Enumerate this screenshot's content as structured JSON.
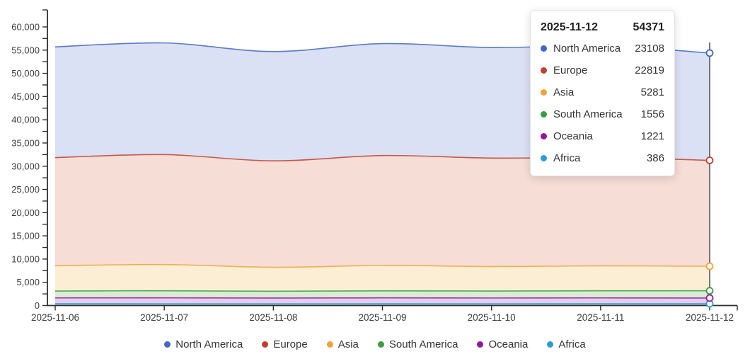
{
  "chart_data": {
    "type": "area",
    "stacked": true,
    "title": "",
    "xlabel": "",
    "ylabel": "",
    "x": [
      "2025-11-06",
      "2025-11-07",
      "2025-11-08",
      "2025-11-09",
      "2025-11-10",
      "2025-11-11",
      "2025-11-12"
    ],
    "series": [
      {
        "name": "North America",
        "color": "#4165c4",
        "fill": "#dbe1f4",
        "values": [
          23850,
          24050,
          23550,
          24100,
          23800,
          24050,
          23108
        ]
      },
      {
        "name": "Europe",
        "color": "#c0402e",
        "fill": "#f6ddd6",
        "values": [
          23300,
          23680,
          22925,
          23665,
          23360,
          23350,
          22819
        ]
      },
      {
        "name": "Asia",
        "color": "#f2a23a",
        "fill": "#fbeed4",
        "values": [
          5430,
          5650,
          5150,
          5480,
          5280,
          5380,
          5281
        ]
      },
      {
        "name": "South America",
        "color": "#379e42",
        "fill": "#d8ecd4",
        "values": [
          1480,
          1520,
          1470,
          1510,
          1490,
          1530,
          1556
        ]
      },
      {
        "name": "Oceania",
        "color": "#93189e",
        "fill": "#e6cdec",
        "values": [
          1250,
          1270,
          1230,
          1260,
          1240,
          1250,
          1221
        ]
      },
      {
        "name": "Africa",
        "color": "#2f9bd3",
        "fill": "#aec9e4",
        "values": [
          390,
          380,
          375,
          385,
          380,
          390,
          386
        ]
      }
    ],
    "stack_order_bottom_to_top": [
      "Africa",
      "Oceania",
      "South America",
      "Asia",
      "Europe",
      "North America"
    ],
    "ylim": [
      0,
      62500
    ],
    "y_major_step": 5000,
    "y_minor_step": 2500,
    "y_tick_labels": [
      "0",
      "5,000",
      "10,000",
      "15,000",
      "20,000",
      "25,000",
      "30,000",
      "35,000",
      "40,000",
      "45,000",
      "50,000",
      "55,000",
      "60,000"
    ],
    "grid": false,
    "legend_position": "bottom",
    "highlighted_x": "2025-11-12",
    "highlighted_total": 54371
  },
  "tooltip": {
    "date": "2025-11-12",
    "total": "54371",
    "rows": [
      {
        "name": "North America",
        "value": "23108",
        "color": "#4165c4"
      },
      {
        "name": "Europe",
        "value": "22819",
        "color": "#c0402e"
      },
      {
        "name": "Asia",
        "value": "5281",
        "color": "#f2a23a"
      },
      {
        "name": "South America",
        "value": "1556",
        "color": "#379e42"
      },
      {
        "name": "Oceania",
        "value": "1221",
        "color": "#93189e"
      },
      {
        "name": "Africa",
        "value": "386",
        "color": "#2f9bd3"
      }
    ]
  },
  "legend": {
    "items": [
      {
        "label": "North America",
        "color": "#4165c4"
      },
      {
        "label": "Europe",
        "color": "#c0402e"
      },
      {
        "label": "Asia",
        "color": "#f2a23a"
      },
      {
        "label": "South America",
        "color": "#379e42"
      },
      {
        "label": "Oceania",
        "color": "#93189e"
      },
      {
        "label": "Africa",
        "color": "#2f9bd3"
      }
    ]
  }
}
